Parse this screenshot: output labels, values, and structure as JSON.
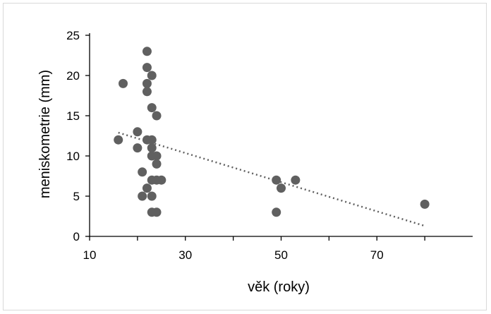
{
  "chart_data": {
    "type": "scatter",
    "title": "",
    "xlabel": "věk (roky)",
    "ylabel": "meniskometrie (mm)",
    "xlim": [
      10,
      90
    ],
    "ylim": [
      0,
      25
    ],
    "x_ticks": [
      10,
      30,
      50,
      70
    ],
    "y_ticks": [
      0,
      5,
      10,
      15,
      20,
      25
    ],
    "grid": false,
    "legend": "none",
    "marker_color": "#606060",
    "trendline": {
      "style": "dotted",
      "color": "#606060",
      "x": [
        16,
        80
      ],
      "y": [
        12.9,
        1.3
      ]
    },
    "series": [
      {
        "points": [
          [
            16,
            12
          ],
          [
            17,
            19
          ],
          [
            20,
            13
          ],
          [
            20,
            11
          ],
          [
            21,
            8
          ],
          [
            21,
            5
          ],
          [
            22,
            23
          ],
          [
            22,
            21
          ],
          [
            22,
            19
          ],
          [
            22,
            18
          ],
          [
            22,
            12
          ],
          [
            22,
            6
          ],
          [
            23,
            20
          ],
          [
            23,
            16
          ],
          [
            23,
            12
          ],
          [
            23,
            11
          ],
          [
            23,
            10
          ],
          [
            23,
            7
          ],
          [
            23,
            5
          ],
          [
            23,
            3
          ],
          [
            24,
            15
          ],
          [
            24,
            10
          ],
          [
            24,
            9
          ],
          [
            24,
            7
          ],
          [
            24,
            3
          ],
          [
            25,
            7
          ],
          [
            49,
            7
          ],
          [
            49,
            3
          ],
          [
            50,
            6
          ],
          [
            53,
            7
          ],
          [
            80,
            4
          ]
        ]
      }
    ]
  }
}
